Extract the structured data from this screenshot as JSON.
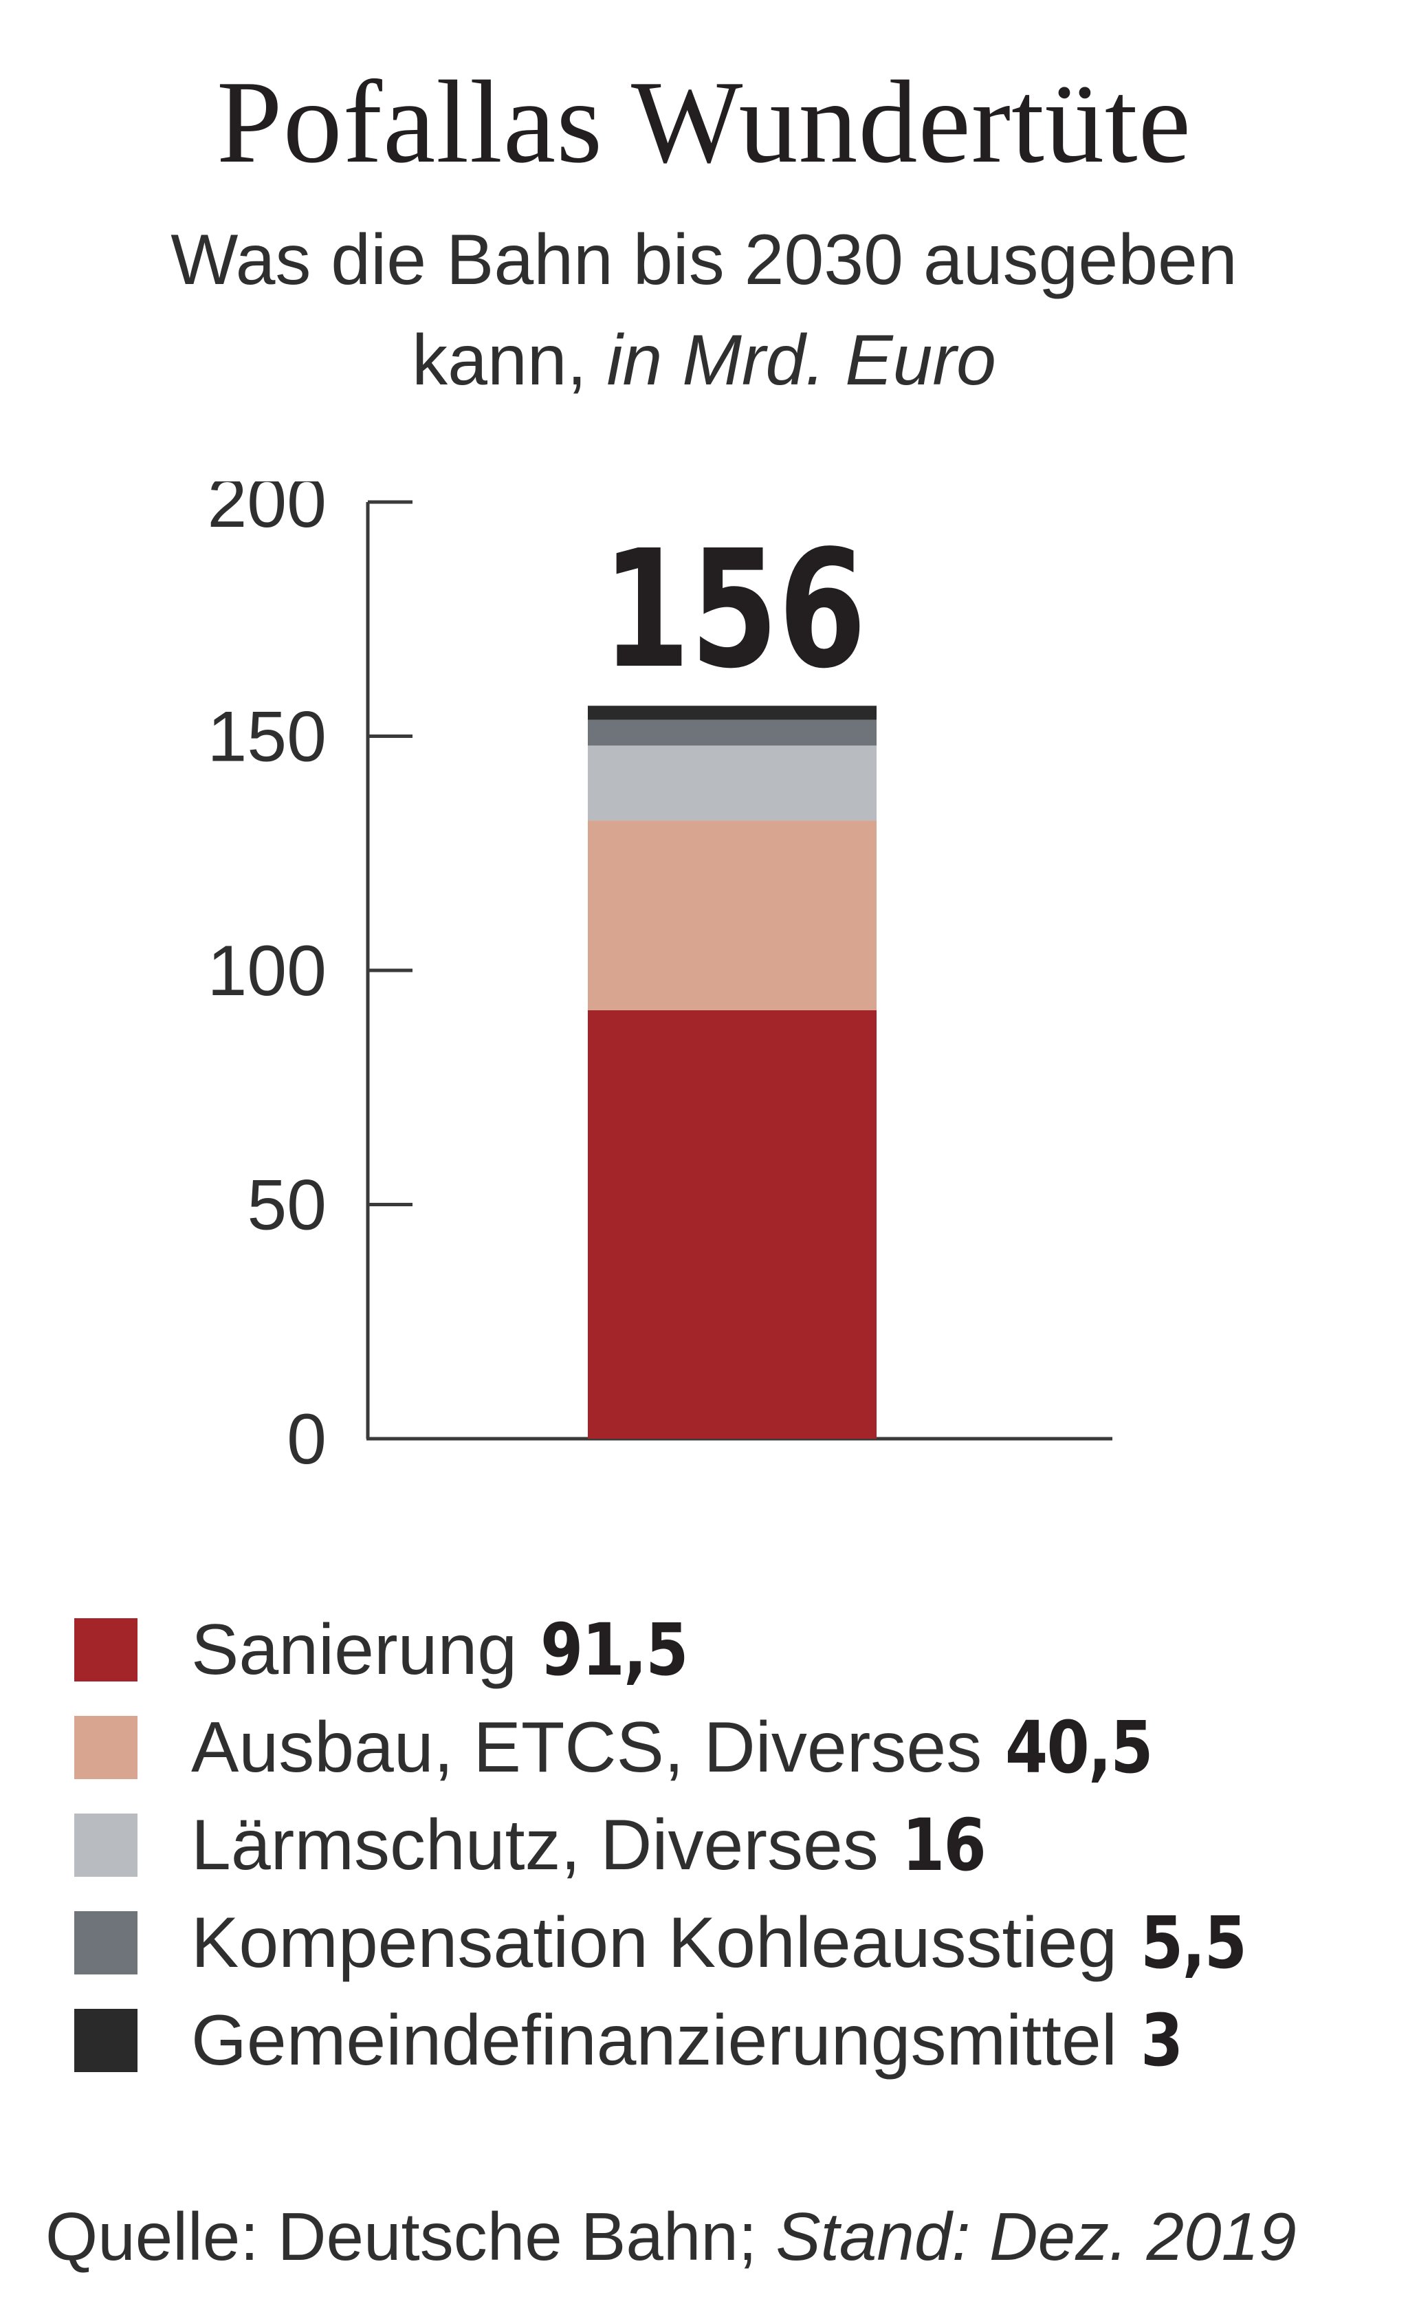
{
  "title": "Pofallas Wundertüte",
  "subtitle_line1": "Was die Bahn bis 2030 ausgeben",
  "subtitle_line2": "kann,",
  "subtitle_unit": "in Mrd. Euro",
  "total_label": "156",
  "source_prefix": "Quelle: Deutsche Bahn;",
  "source_stand": "Stand: Dez. 2019",
  "chart_data": {
    "type": "bar",
    "stacked": true,
    "title": "Pofallas Wundertüte",
    "ylim": [
      0,
      200
    ],
    "yticks": [
      0,
      50,
      100,
      150,
      200
    ],
    "total": 156,
    "series": [
      {
        "name": "Sanierung",
        "value": 91.5,
        "value_label": "91,5",
        "color": "#a32429"
      },
      {
        "name": "Ausbau, ETCS, Diverses",
        "value": 40.5,
        "value_label": "40,5",
        "color": "#d7a590"
      },
      {
        "name": "Lärmschutz, Diverses",
        "value": 16,
        "value_label": "16",
        "color": "#b8bcc0"
      },
      {
        "name": "Kompensation Kohleausstieg",
        "value": 5.5,
        "value_label": "5,5",
        "color": "#6e7479"
      },
      {
        "name": "Gemeindefinanzierungsmittel",
        "value": 3,
        "value_label": "3",
        "color": "#2a2a2a"
      }
    ]
  }
}
